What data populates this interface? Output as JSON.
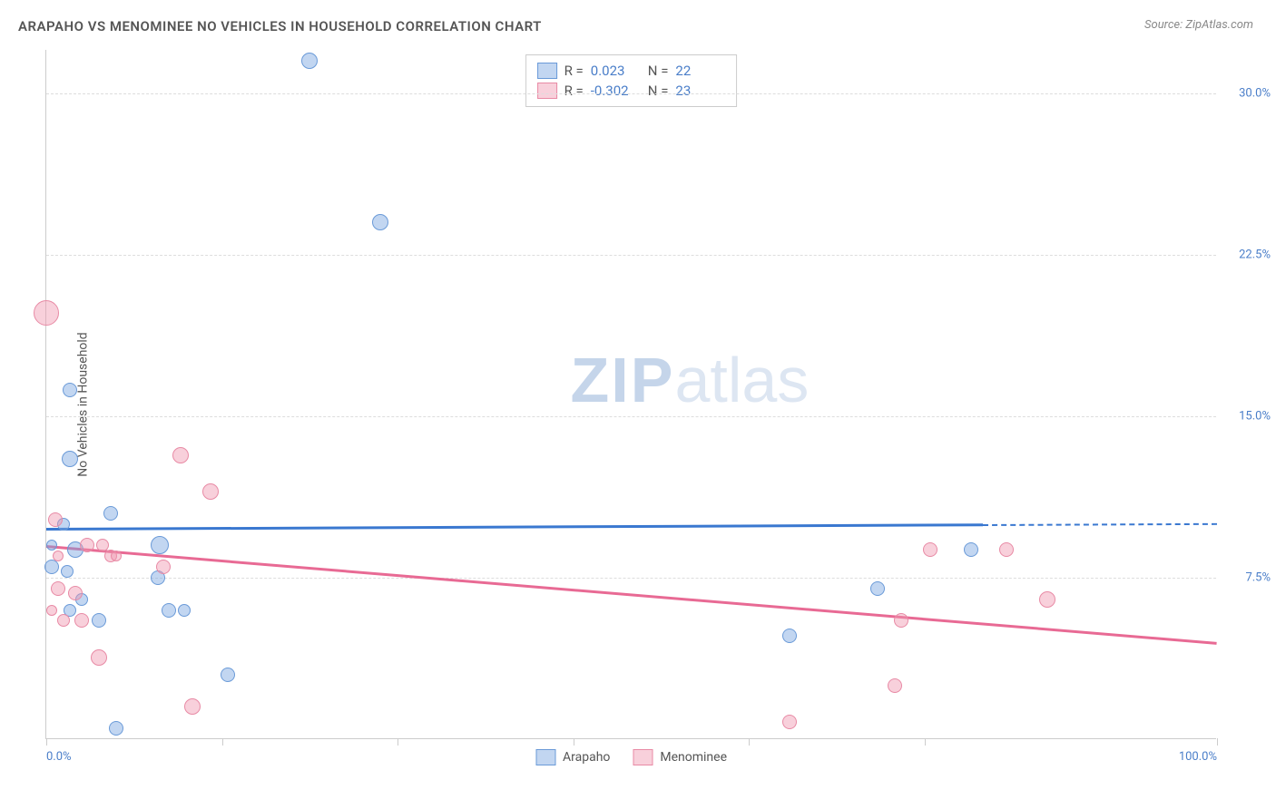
{
  "title": "ARAPAHO VS MENOMINEE NO VEHICLES IN HOUSEHOLD CORRELATION CHART",
  "source": "Source: ZipAtlas.com",
  "y_axis_label": "No Vehicles in Household",
  "watermark_zip": "ZIP",
  "watermark_atlas": "atlas",
  "chart": {
    "type": "scatter",
    "xlim": [
      0,
      100
    ],
    "ylim": [
      0,
      32
    ],
    "background_color": "#ffffff",
    "grid_color": "#dddddd",
    "axis_color": "#cccccc",
    "y_ticks": [
      {
        "value": 30.0,
        "label": "30.0%"
      },
      {
        "value": 22.5,
        "label": "22.5%"
      },
      {
        "value": 15.0,
        "label": "15.0%"
      },
      {
        "value": 7.5,
        "label": "7.5%"
      }
    ],
    "x_tick_positions": [
      0,
      15,
      30,
      45,
      60,
      75,
      100
    ],
    "x_tick_labels": [
      {
        "position": 0,
        "label": "0.0%",
        "align": "left"
      },
      {
        "position": 100,
        "label": "100.0%",
        "align": "right"
      }
    ],
    "series": [
      {
        "name": "Arapaho",
        "color_fill": "rgba(120,165,225,0.45)",
        "color_stroke": "#6a9ad8",
        "trend_color": "#3a78d0",
        "R": "0.023",
        "N": "22",
        "trend": {
          "x0": 0,
          "y0": 9.8,
          "x1": 80,
          "y1": 10.0,
          "x1_dash": 100,
          "y1_dash": 10.05
        },
        "points": [
          {
            "x": 22.5,
            "y": 31.5,
            "r": 9
          },
          {
            "x": 28.5,
            "y": 24.0,
            "r": 9
          },
          {
            "x": 2.0,
            "y": 16.2,
            "r": 8
          },
          {
            "x": 2.0,
            "y": 13.0,
            "r": 9
          },
          {
            "x": 5.5,
            "y": 10.5,
            "r": 8
          },
          {
            "x": 1.5,
            "y": 10.0,
            "r": 7
          },
          {
            "x": 2.5,
            "y": 8.8,
            "r": 9
          },
          {
            "x": 9.7,
            "y": 9.0,
            "r": 10
          },
          {
            "x": 0.5,
            "y": 8.0,
            "r": 8
          },
          {
            "x": 1.8,
            "y": 7.8,
            "r": 7
          },
          {
            "x": 9.5,
            "y": 7.5,
            "r": 8
          },
          {
            "x": 10.5,
            "y": 6.0,
            "r": 8
          },
          {
            "x": 11.8,
            "y": 6.0,
            "r": 7
          },
          {
            "x": 4.5,
            "y": 5.5,
            "r": 8
          },
          {
            "x": 3.0,
            "y": 6.5,
            "r": 7
          },
          {
            "x": 15.5,
            "y": 3.0,
            "r": 8
          },
          {
            "x": 6.0,
            "y": 0.5,
            "r": 8
          },
          {
            "x": 79.0,
            "y": 8.8,
            "r": 8
          },
          {
            "x": 71.0,
            "y": 7.0,
            "r": 8
          },
          {
            "x": 63.5,
            "y": 4.8,
            "r": 8
          },
          {
            "x": 0.5,
            "y": 9.0,
            "r": 6
          },
          {
            "x": 2.0,
            "y": 6.0,
            "r": 7
          }
        ]
      },
      {
        "name": "Menominee",
        "color_fill": "rgba(240,150,175,0.45)",
        "color_stroke": "#e88aa5",
        "trend_color": "#e86a94",
        "R": "-0.302",
        "N": "23",
        "trend": {
          "x0": 0,
          "y0": 9.0,
          "x1": 100,
          "y1": 4.5
        },
        "points": [
          {
            "x": 0.0,
            "y": 19.8,
            "r": 14
          },
          {
            "x": 11.5,
            "y": 13.2,
            "r": 9
          },
          {
            "x": 14.0,
            "y": 11.5,
            "r": 9
          },
          {
            "x": 0.8,
            "y": 10.2,
            "r": 8
          },
          {
            "x": 3.5,
            "y": 9.0,
            "r": 8
          },
          {
            "x": 4.8,
            "y": 9.0,
            "r": 7
          },
          {
            "x": 5.5,
            "y": 8.5,
            "r": 7
          },
          {
            "x": 10.0,
            "y": 8.0,
            "r": 8
          },
          {
            "x": 1.0,
            "y": 7.0,
            "r": 8
          },
          {
            "x": 2.5,
            "y": 6.8,
            "r": 8
          },
          {
            "x": 3.0,
            "y": 5.5,
            "r": 8
          },
          {
            "x": 1.5,
            "y": 5.5,
            "r": 7
          },
          {
            "x": 4.5,
            "y": 3.8,
            "r": 9
          },
          {
            "x": 12.5,
            "y": 1.5,
            "r": 9
          },
          {
            "x": 75.5,
            "y": 8.8,
            "r": 8
          },
          {
            "x": 82.0,
            "y": 8.8,
            "r": 8
          },
          {
            "x": 73.0,
            "y": 5.5,
            "r": 8
          },
          {
            "x": 85.5,
            "y": 6.5,
            "r": 9
          },
          {
            "x": 72.5,
            "y": 2.5,
            "r": 8
          },
          {
            "x": 63.5,
            "y": 0.8,
            "r": 8
          },
          {
            "x": 1.0,
            "y": 8.5,
            "r": 6
          },
          {
            "x": 0.5,
            "y": 6.0,
            "r": 6
          },
          {
            "x": 6.0,
            "y": 8.5,
            "r": 6
          }
        ]
      }
    ]
  },
  "legend_top": {
    "r_label": "R =",
    "n_label": "N ="
  }
}
